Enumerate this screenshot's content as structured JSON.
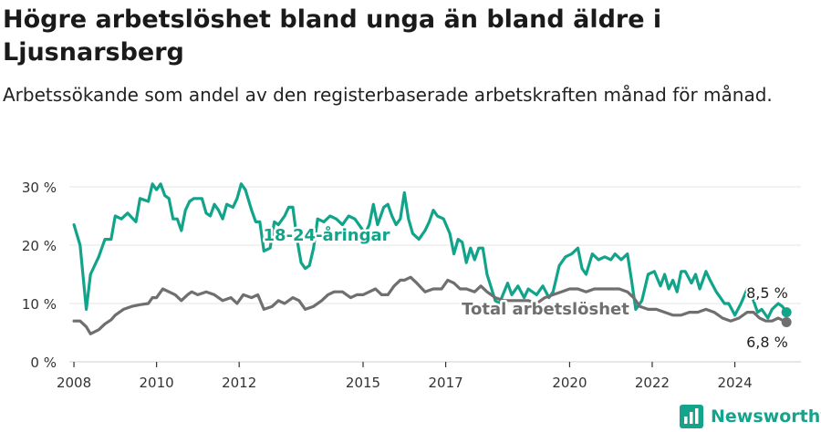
{
  "title": "Högre arbetslöshet bland unga än bland äldre i Ljusnarsberg",
  "subtitle": "Arbetssökande som andel av den registerbaserade arbetskraften månad för månad.",
  "brand": {
    "name": "Newsworthy",
    "color": "#14a38b"
  },
  "chart_data": {
    "type": "line",
    "title": "Högre arbetslöshet bland unga än bland äldre i Ljusnarsberg",
    "subtitle": "Arbetssökande som andel av den registerbaserade arbetskraften månad för månad.",
    "xlabel": "",
    "ylabel": "",
    "grid": true,
    "legend": "inline",
    "xlim": [
      2007.8,
      2025.6
    ],
    "ylim": [
      0,
      30
    ],
    "y_ticks": [
      0,
      10,
      20,
      30
    ],
    "y_tick_labels": [
      "0 %",
      "10 %",
      "20 %",
      "30 %"
    ],
    "x_ticks": [
      2008,
      2010,
      2012,
      2015,
      2017,
      2020,
      2022,
      2024
    ],
    "x_tick_labels": [
      "2008",
      "2010",
      "2012",
      "2015",
      "2017",
      "2020",
      "2022",
      "2024"
    ],
    "series": [
      {
        "name": "18-24-åringar",
        "color": "#12a48a",
        "end_label": "8,5 %",
        "points": [
          [
            2008.0,
            23.5
          ],
          [
            2008.15,
            20.0
          ],
          [
            2008.3,
            9.0
          ],
          [
            2008.4,
            15.0
          ],
          [
            2008.6,
            18.0
          ],
          [
            2008.75,
            21.0
          ],
          [
            2008.9,
            21.0
          ],
          [
            2009.0,
            25.0
          ],
          [
            2009.15,
            24.5
          ],
          [
            2009.3,
            25.5
          ],
          [
            2009.5,
            24.0
          ],
          [
            2009.6,
            28.0
          ],
          [
            2009.8,
            27.5
          ],
          [
            2009.9,
            30.5
          ],
          [
            2010.0,
            29.5
          ],
          [
            2010.1,
            30.5
          ],
          [
            2010.2,
            28.5
          ],
          [
            2010.3,
            28.0
          ],
          [
            2010.4,
            24.5
          ],
          [
            2010.5,
            24.5
          ],
          [
            2010.6,
            22.5
          ],
          [
            2010.7,
            26.0
          ],
          [
            2010.8,
            27.5
          ],
          [
            2010.9,
            28.0
          ],
          [
            2011.1,
            28.0
          ],
          [
            2011.2,
            25.5
          ],
          [
            2011.3,
            25.0
          ],
          [
            2011.4,
            27.0
          ],
          [
            2011.5,
            26.0
          ],
          [
            2011.6,
            24.5
          ],
          [
            2011.7,
            27.0
          ],
          [
            2011.85,
            26.5
          ],
          [
            2011.95,
            28.0
          ],
          [
            2012.05,
            30.5
          ],
          [
            2012.15,
            29.5
          ],
          [
            2012.3,
            26.0
          ],
          [
            2012.4,
            24.0
          ],
          [
            2012.5,
            24.0
          ],
          [
            2012.6,
            19.0
          ],
          [
            2012.75,
            19.5
          ],
          [
            2012.85,
            24.0
          ],
          [
            2012.95,
            23.5
          ],
          [
            2013.1,
            25.0
          ],
          [
            2013.2,
            26.5
          ],
          [
            2013.3,
            26.5
          ],
          [
            2013.4,
            21.0
          ],
          [
            2013.5,
            17.0
          ],
          [
            2013.6,
            16.0
          ],
          [
            2013.7,
            16.5
          ],
          [
            2013.8,
            19.5
          ],
          [
            2013.9,
            24.5
          ],
          [
            2014.05,
            24.0
          ],
          [
            2014.2,
            25.0
          ],
          [
            2014.35,
            24.5
          ],
          [
            2014.5,
            23.5
          ],
          [
            2014.65,
            25.0
          ],
          [
            2014.8,
            24.5
          ],
          [
            2014.95,
            23.0
          ],
          [
            2015.05,
            22.0
          ],
          [
            2015.15,
            23.5
          ],
          [
            2015.25,
            27.0
          ],
          [
            2015.35,
            23.5
          ],
          [
            2015.5,
            26.5
          ],
          [
            2015.6,
            27.0
          ],
          [
            2015.7,
            25.0
          ],
          [
            2015.8,
            23.5
          ],
          [
            2015.9,
            24.5
          ],
          [
            2016.0,
            29.0
          ],
          [
            2016.1,
            24.5
          ],
          [
            2016.2,
            22.0
          ],
          [
            2016.35,
            21.0
          ],
          [
            2016.5,
            22.5
          ],
          [
            2016.6,
            24.0
          ],
          [
            2016.7,
            26.0
          ],
          [
            2016.8,
            25.0
          ],
          [
            2016.95,
            24.5
          ],
          [
            2017.1,
            22.0
          ],
          [
            2017.2,
            18.5
          ],
          [
            2017.3,
            21.0
          ],
          [
            2017.4,
            20.5
          ],
          [
            2017.5,
            17.0
          ],
          [
            2017.6,
            19.5
          ],
          [
            2017.7,
            17.5
          ],
          [
            2017.8,
            19.5
          ],
          [
            2017.9,
            19.5
          ],
          [
            2018.0,
            15.0
          ],
          [
            2018.2,
            10.5
          ],
          [
            2018.3,
            10.0
          ],
          [
            2018.5,
            13.5
          ],
          [
            2018.6,
            11.5
          ],
          [
            2018.75,
            13.0
          ],
          [
            2018.9,
            11.0
          ],
          [
            2019.0,
            12.5
          ],
          [
            2019.2,
            11.5
          ],
          [
            2019.35,
            13.0
          ],
          [
            2019.5,
            11.0
          ],
          [
            2019.6,
            12.0
          ],
          [
            2019.75,
            16.5
          ],
          [
            2019.9,
            18.0
          ],
          [
            2020.05,
            18.5
          ],
          [
            2020.2,
            19.5
          ],
          [
            2020.3,
            16.0
          ],
          [
            2020.4,
            15.0
          ],
          [
            2020.55,
            18.5
          ],
          [
            2020.7,
            17.5
          ],
          [
            2020.85,
            18.0
          ],
          [
            2021.0,
            17.5
          ],
          [
            2021.1,
            18.5
          ],
          [
            2021.25,
            17.5
          ],
          [
            2021.4,
            18.5
          ],
          [
            2021.5,
            14.0
          ],
          [
            2021.6,
            9.0
          ],
          [
            2021.75,
            10.5
          ],
          [
            2021.9,
            15.0
          ],
          [
            2022.05,
            15.5
          ],
          [
            2022.2,
            13.0
          ],
          [
            2022.3,
            15.0
          ],
          [
            2022.4,
            12.5
          ],
          [
            2022.5,
            14.0
          ],
          [
            2022.6,
            12.0
          ],
          [
            2022.7,
            15.5
          ],
          [
            2022.8,
            15.5
          ],
          [
            2022.95,
            13.5
          ],
          [
            2023.05,
            15.0
          ],
          [
            2023.15,
            12.5
          ],
          [
            2023.3,
            15.5
          ],
          [
            2023.4,
            14.0
          ],
          [
            2023.55,
            12.0
          ],
          [
            2023.65,
            11.0
          ],
          [
            2023.75,
            10.0
          ],
          [
            2023.85,
            10.0
          ],
          [
            2024.0,
            8.0
          ],
          [
            2024.15,
            10.0
          ],
          [
            2024.3,
            12.5
          ],
          [
            2024.4,
            11.5
          ],
          [
            2024.55,
            8.5
          ],
          [
            2024.65,
            9.0
          ],
          [
            2024.8,
            7.5
          ],
          [
            2024.9,
            9.0
          ],
          [
            2025.05,
            10.0
          ],
          [
            2025.15,
            9.5
          ],
          [
            2025.25,
            8.5
          ]
        ]
      },
      {
        "name": "Total arbetslöshet",
        "color": "#6f6f6f",
        "end_label": "6,8 %",
        "points": [
          [
            2008.0,
            7.0
          ],
          [
            2008.15,
            7.0
          ],
          [
            2008.3,
            6.0
          ],
          [
            2008.4,
            4.8
          ],
          [
            2008.6,
            5.5
          ],
          [
            2008.75,
            6.5
          ],
          [
            2008.9,
            7.2
          ],
          [
            2009.0,
            8.0
          ],
          [
            2009.2,
            9.0
          ],
          [
            2009.4,
            9.5
          ],
          [
            2009.6,
            9.8
          ],
          [
            2009.8,
            10.0
          ],
          [
            2009.9,
            11.0
          ],
          [
            2010.0,
            11.0
          ],
          [
            2010.15,
            12.5
          ],
          [
            2010.3,
            12.0
          ],
          [
            2010.45,
            11.5
          ],
          [
            2010.6,
            10.5
          ],
          [
            2010.75,
            11.5
          ],
          [
            2010.85,
            12.0
          ],
          [
            2011.0,
            11.5
          ],
          [
            2011.2,
            12.0
          ],
          [
            2011.4,
            11.5
          ],
          [
            2011.6,
            10.5
          ],
          [
            2011.8,
            11.0
          ],
          [
            2011.95,
            10.0
          ],
          [
            2012.1,
            11.5
          ],
          [
            2012.3,
            11.0
          ],
          [
            2012.45,
            11.5
          ],
          [
            2012.6,
            9.0
          ],
          [
            2012.8,
            9.5
          ],
          [
            2012.95,
            10.5
          ],
          [
            2013.1,
            10.0
          ],
          [
            2013.3,
            11.0
          ],
          [
            2013.45,
            10.5
          ],
          [
            2013.6,
            9.0
          ],
          [
            2013.8,
            9.5
          ],
          [
            2014.0,
            10.5
          ],
          [
            2014.15,
            11.5
          ],
          [
            2014.3,
            12.0
          ],
          [
            2014.5,
            12.0
          ],
          [
            2014.7,
            11.0
          ],
          [
            2014.85,
            11.5
          ],
          [
            2015.0,
            11.5
          ],
          [
            2015.15,
            12.0
          ],
          [
            2015.3,
            12.5
          ],
          [
            2015.45,
            11.5
          ],
          [
            2015.6,
            11.5
          ],
          [
            2015.75,
            13.0
          ],
          [
            2015.9,
            14.0
          ],
          [
            2016.0,
            14.0
          ],
          [
            2016.15,
            14.5
          ],
          [
            2016.3,
            13.5
          ],
          [
            2016.5,
            12.0
          ],
          [
            2016.7,
            12.5
          ],
          [
            2016.9,
            12.5
          ],
          [
            2017.05,
            14.0
          ],
          [
            2017.2,
            13.5
          ],
          [
            2017.35,
            12.5
          ],
          [
            2017.5,
            12.5
          ],
          [
            2017.7,
            12.0
          ],
          [
            2017.85,
            13.0
          ],
          [
            2018.0,
            12.0
          ],
          [
            2018.2,
            11.0
          ],
          [
            2018.4,
            10.5
          ],
          [
            2018.6,
            10.5
          ],
          [
            2018.8,
            10.5
          ],
          [
            2019.0,
            10.5
          ],
          [
            2019.2,
            10.0
          ],
          [
            2019.4,
            11.0
          ],
          [
            2019.6,
            11.5
          ],
          [
            2019.8,
            12.0
          ],
          [
            2020.0,
            12.5
          ],
          [
            2020.2,
            12.5
          ],
          [
            2020.4,
            12.0
          ],
          [
            2020.6,
            12.5
          ],
          [
            2020.8,
            12.5
          ],
          [
            2021.0,
            12.5
          ],
          [
            2021.2,
            12.5
          ],
          [
            2021.4,
            12.0
          ],
          [
            2021.55,
            11.0
          ],
          [
            2021.7,
            9.5
          ],
          [
            2021.9,
            9.0
          ],
          [
            2022.1,
            9.0
          ],
          [
            2022.3,
            8.5
          ],
          [
            2022.5,
            8.0
          ],
          [
            2022.7,
            8.0
          ],
          [
            2022.9,
            8.5
          ],
          [
            2023.1,
            8.5
          ],
          [
            2023.3,
            9.0
          ],
          [
            2023.5,
            8.5
          ],
          [
            2023.7,
            7.5
          ],
          [
            2023.9,
            7.0
          ],
          [
            2024.1,
            7.5
          ],
          [
            2024.3,
            8.5
          ],
          [
            2024.45,
            8.5
          ],
          [
            2024.6,
            7.5
          ],
          [
            2024.75,
            7.0
          ],
          [
            2024.9,
            7.0
          ],
          [
            2025.05,
            7.5
          ],
          [
            2025.25,
            6.8
          ]
        ]
      }
    ]
  }
}
